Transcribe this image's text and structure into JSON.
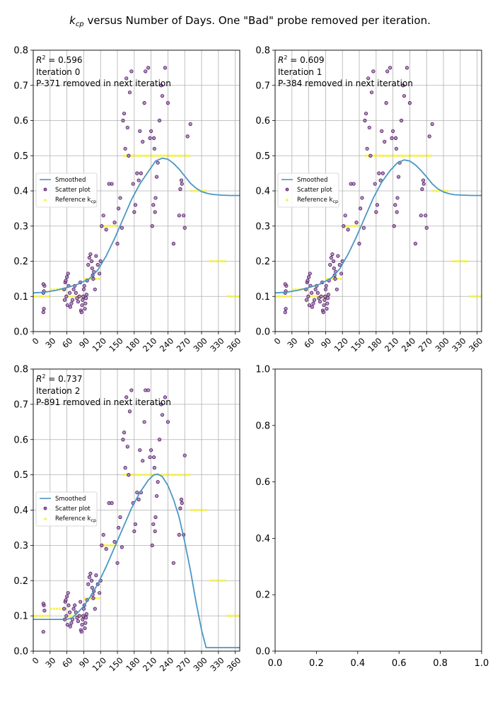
{
  "figure": {
    "title_html": "k_cp versus Number of Days.  One \"Bad\" probe removed per iteration.",
    "title_parts": [
      "k",
      "cp",
      " versus Number of Days.  One \"Bad\" probe removed per iteration."
    ]
  },
  "legend_labels": {
    "smoothed": "Smoothed",
    "scatter": "Scatter plot",
    "reference": "Reference k",
    "reference_sub": "cp"
  },
  "colors": {
    "smoothed": "#4b97c4",
    "scatter_face": "#9b72ae",
    "scatter_edge": "#4b0f5e",
    "reference": "#f7f43a",
    "grid": "#b0b0b0"
  },
  "chart_data": [
    {
      "type": "scatter",
      "panel": "iteration-0",
      "grid": true,
      "xlim": [
        0,
        368
      ],
      "ylim": [
        0,
        0.8
      ],
      "xticks": [
        0,
        30,
        60,
        90,
        120,
        150,
        180,
        210,
        240,
        270,
        300,
        330,
        360
      ],
      "yticks": [
        0.0,
        0.1,
        0.2,
        0.3,
        0.4,
        0.5,
        0.6,
        0.7,
        0.8
      ],
      "annotation": {
        "r2_prefix": "R",
        "r2_sup": "2",
        "r2_value": " = 0.596",
        "iteration": "Iteration 0",
        "removed": "P-371 removed in next iteration"
      },
      "legend_position": "center-left",
      "smoothed": {
        "x": [
          0,
          20,
          40,
          60,
          80,
          100,
          115,
          130,
          145,
          160,
          175,
          190,
          205,
          218,
          230,
          240,
          250,
          260,
          270,
          280,
          290,
          300,
          310,
          320,
          335,
          350,
          368
        ],
        "y": [
          0.11,
          0.112,
          0.117,
          0.125,
          0.135,
          0.15,
          0.175,
          0.215,
          0.265,
          0.32,
          0.375,
          0.42,
          0.455,
          0.485,
          0.493,
          0.49,
          0.478,
          0.462,
          0.442,
          0.422,
          0.408,
          0.398,
          0.393,
          0.39,
          0.388,
          0.387,
          0.387
        ]
      },
      "reference": [
        {
          "x0": 0,
          "x1": 30,
          "y": 0.1
        },
        {
          "x0": 30,
          "x1": 60,
          "y": 0.12
        },
        {
          "x0": 60,
          "x1": 90,
          "y": 0.1
        },
        {
          "x0": 90,
          "x1": 120,
          "y": 0.15
        },
        {
          "x0": 120,
          "x1": 150,
          "y": 0.3
        },
        {
          "x0": 160,
          "x1": 280,
          "y": 0.5
        },
        {
          "x0": 280,
          "x1": 310,
          "y": 0.4
        },
        {
          "x0": 315,
          "x1": 345,
          "y": 0.2
        },
        {
          "x0": 345,
          "x1": 368,
          "y": 0.1
        }
      ],
      "scatter": {
        "x": [
          18,
          19,
          18,
          20,
          18,
          19,
          55,
          57,
          58,
          60,
          62,
          63,
          65,
          56,
          59,
          61,
          66,
          68,
          70,
          72,
          74,
          76,
          78,
          80,
          82,
          84,
          85,
          86,
          87,
          88,
          89,
          90,
          91,
          92,
          93,
          94,
          95,
          96,
          98,
          100,
          102,
          104,
          105,
          106,
          107,
          108,
          110,
          112,
          115,
          118,
          120,
          122,
          125,
          130,
          135,
          140,
          145,
          150,
          152,
          155,
          158,
          160,
          162,
          164,
          166,
          168,
          170,
          172,
          175,
          178,
          180,
          182,
          185,
          188,
          190,
          192,
          195,
          198,
          200,
          205,
          208,
          210,
          212,
          214,
          215,
          216,
          217,
          218,
          220,
          222,
          225,
          228,
          230,
          235,
          240,
          250,
          260,
          262,
          264,
          265,
          268,
          270,
          275,
          280
        ],
        "y": [
          0.055,
          0.065,
          0.11,
          0.13,
          0.135,
          0.115,
          0.12,
          0.14,
          0.145,
          0.155,
          0.165,
          0.13,
          0.11,
          0.09,
          0.1,
          0.075,
          0.07,
          0.08,
          0.09,
          0.12,
          0.13,
          0.11,
          0.095,
          0.085,
          0.1,
          0.14,
          0.06,
          0.055,
          0.075,
          0.09,
          0.1,
          0.12,
          0.13,
          0.065,
          0.08,
          0.095,
          0.105,
          0.145,
          0.19,
          0.21,
          0.22,
          0.2,
          0.18,
          0.16,
          0.15,
          0.17,
          0.12,
          0.215,
          0.19,
          0.165,
          0.2,
          0.3,
          0.33,
          0.29,
          0.42,
          0.42,
          0.31,
          0.25,
          0.35,
          0.38,
          0.295,
          0.6,
          0.62,
          0.52,
          0.72,
          0.58,
          0.5,
          0.68,
          0.74,
          0.42,
          0.34,
          0.36,
          0.45,
          0.43,
          0.57,
          0.45,
          0.54,
          0.65,
          0.74,
          0.75,
          0.55,
          0.57,
          0.3,
          0.36,
          0.55,
          0.52,
          0.34,
          0.38,
          0.44,
          0.48,
          0.6,
          0.7,
          0.67,
          0.75,
          0.65,
          0.25,
          0.33,
          0.405,
          0.43,
          0.42,
          0.33,
          0.295,
          0.555,
          0.59
        ]
      }
    },
    {
      "type": "scatter",
      "panel": "iteration-1",
      "grid": true,
      "xlim": [
        0,
        368
      ],
      "ylim": [
        0,
        0.8
      ],
      "xticks": [
        0,
        30,
        60,
        90,
        120,
        150,
        180,
        210,
        240,
        270,
        300,
        330,
        360
      ],
      "yticks": [
        0.0,
        0.1,
        0.2,
        0.3,
        0.4,
        0.5,
        0.6,
        0.7,
        0.8
      ],
      "annotation": {
        "r2_prefix": "R",
        "r2_sup": "2",
        "r2_value": " = 0.609",
        "iteration": "Iteration 1",
        "removed": "P-384 removed in next iteration"
      },
      "legend_position": "center-left",
      "smoothed": {
        "x": [
          0,
          20,
          40,
          60,
          80,
          100,
          115,
          130,
          145,
          160,
          175,
          190,
          205,
          218,
          230,
          240,
          250,
          260,
          270,
          280,
          290,
          300,
          310,
          320,
          335,
          350,
          368
        ],
        "y": [
          0.11,
          0.112,
          0.117,
          0.125,
          0.135,
          0.152,
          0.178,
          0.22,
          0.27,
          0.325,
          0.38,
          0.425,
          0.458,
          0.48,
          0.488,
          0.485,
          0.474,
          0.458,
          0.44,
          0.42,
          0.406,
          0.397,
          0.392,
          0.389,
          0.388,
          0.387,
          0.387
        ]
      },
      "reference": [
        {
          "x0": 0,
          "x1": 30,
          "y": 0.1
        },
        {
          "x0": 30,
          "x1": 60,
          "y": 0.12
        },
        {
          "x0": 60,
          "x1": 90,
          "y": 0.1
        },
        {
          "x0": 90,
          "x1": 120,
          "y": 0.15
        },
        {
          "x0": 120,
          "x1": 150,
          "y": 0.3
        },
        {
          "x0": 160,
          "x1": 280,
          "y": 0.5
        },
        {
          "x0": 280,
          "x1": 310,
          "y": 0.4
        },
        {
          "x0": 315,
          "x1": 345,
          "y": 0.2
        },
        {
          "x0": 345,
          "x1": 368,
          "y": 0.1
        }
      ],
      "scatter": {
        "x": [
          18,
          19,
          18,
          20,
          18,
          19,
          55,
          57,
          58,
          60,
          62,
          63,
          65,
          56,
          59,
          61,
          66,
          68,
          70,
          72,
          74,
          76,
          78,
          80,
          82,
          84,
          85,
          86,
          87,
          88,
          89,
          90,
          91,
          92,
          93,
          94,
          95,
          96,
          98,
          100,
          102,
          104,
          105,
          106,
          107,
          108,
          110,
          112,
          115,
          118,
          120,
          122,
          125,
          130,
          135,
          140,
          145,
          150,
          152,
          155,
          158,
          160,
          162,
          164,
          166,
          168,
          170,
          172,
          175,
          178,
          180,
          182,
          185,
          188,
          190,
          192,
          195,
          198,
          200,
          205,
          208,
          210,
          212,
          214,
          215,
          216,
          217,
          218,
          220,
          222,
          225,
          228,
          230,
          235,
          240,
          250,
          260,
          262,
          264,
          265,
          268,
          270,
          275,
          280
        ],
        "y": [
          0.055,
          0.065,
          0.11,
          0.13,
          0.135,
          0.115,
          0.12,
          0.14,
          0.145,
          0.155,
          0.165,
          0.13,
          0.11,
          0.09,
          0.1,
          0.075,
          0.07,
          0.08,
          0.09,
          0.12,
          0.13,
          0.11,
          0.095,
          0.085,
          0.1,
          0.14,
          0.06,
          0.055,
          0.075,
          0.09,
          0.1,
          0.12,
          0.13,
          0.065,
          0.08,
          0.095,
          0.105,
          0.145,
          0.19,
          0.21,
          0.22,
          0.2,
          0.18,
          0.16,
          0.15,
          0.17,
          0.12,
          0.215,
          0.19,
          0.165,
          0.2,
          0.3,
          0.33,
          0.29,
          0.42,
          0.42,
          0.31,
          0.25,
          0.35,
          0.38,
          0.295,
          0.6,
          0.62,
          0.52,
          0.72,
          0.58,
          0.5,
          0.68,
          0.74,
          0.42,
          0.34,
          0.36,
          0.45,
          0.43,
          0.57,
          0.45,
          0.54,
          0.65,
          0.74,
          0.75,
          0.55,
          0.57,
          0.3,
          0.36,
          0.55,
          0.52,
          0.34,
          0.38,
          0.44,
          0.48,
          0.6,
          0.7,
          0.67,
          0.75,
          0.65,
          0.25,
          0.33,
          0.405,
          0.43,
          0.42,
          0.33,
          0.295,
          0.555,
          0.59
        ]
      }
    },
    {
      "type": "scatter",
      "panel": "iteration-2",
      "grid": true,
      "xlim": [
        0,
        368
      ],
      "ylim": [
        0,
        0.8
      ],
      "xticks": [
        0,
        30,
        60,
        90,
        120,
        150,
        180,
        210,
        240,
        270,
        300,
        330,
        360
      ],
      "yticks": [
        0.0,
        0.1,
        0.2,
        0.3,
        0.4,
        0.5,
        0.6,
        0.7,
        0.8
      ],
      "annotation": {
        "r2_prefix": "R",
        "r2_sup": "2",
        "r2_value": " = 0.737",
        "iteration": "Iteration 2",
        "removed": "P-891 removed in next iteration"
      },
      "legend_position": "center-left",
      "smoothed": {
        "x": [
          0,
          20,
          40,
          60,
          70,
          80,
          90,
          100,
          115,
          130,
          145,
          160,
          175,
          190,
          205,
          215,
          222,
          230,
          240,
          250,
          260,
          270,
          280,
          290,
          300,
          308,
          330,
          368
        ],
        "y": [
          0.09,
          0.09,
          0.09,
          0.09,
          0.095,
          0.11,
          0.128,
          0.15,
          0.19,
          0.24,
          0.295,
          0.35,
          0.405,
          0.45,
          0.485,
          0.5,
          0.502,
          0.495,
          0.47,
          0.43,
          0.38,
          0.31,
          0.23,
          0.14,
          0.06,
          0.01,
          0.01,
          0.01
        ]
      },
      "reference": [
        {
          "x0": 0,
          "x1": 30,
          "y": 0.1
        },
        {
          "x0": 30,
          "x1": 60,
          "y": 0.12
        },
        {
          "x0": 60,
          "x1": 90,
          "y": 0.1
        },
        {
          "x0": 90,
          "x1": 120,
          "y": 0.15
        },
        {
          "x0": 120,
          "x1": 150,
          "y": 0.3
        },
        {
          "x0": 160,
          "x1": 280,
          "y": 0.5
        },
        {
          "x0": 280,
          "x1": 310,
          "y": 0.4
        },
        {
          "x0": 315,
          "x1": 345,
          "y": 0.2
        },
        {
          "x0": 345,
          "x1": 368,
          "y": 0.1
        }
      ],
      "scatter": {
        "x": [
          18,
          19,
          18,
          20,
          55,
          57,
          58,
          60,
          62,
          63,
          65,
          56,
          59,
          61,
          66,
          68,
          70,
          72,
          74,
          76,
          78,
          80,
          82,
          84,
          85,
          86,
          87,
          88,
          89,
          90,
          91,
          92,
          93,
          94,
          95,
          96,
          98,
          100,
          102,
          104,
          105,
          106,
          107,
          108,
          110,
          112,
          115,
          118,
          120,
          122,
          125,
          130,
          135,
          140,
          145,
          150,
          152,
          155,
          158,
          160,
          162,
          164,
          166,
          168,
          170,
          172,
          175,
          178,
          180,
          182,
          185,
          188,
          190,
          192,
          195,
          198,
          200,
          205,
          208,
          210,
          212,
          214,
          215,
          216,
          217,
          218,
          220,
          222,
          225,
          228,
          230,
          235,
          240,
          250,
          260,
          262,
          264,
          265,
          268,
          270
        ],
        "y": [
          0.055,
          0.13,
          0.135,
          0.115,
          0.12,
          0.14,
          0.145,
          0.155,
          0.165,
          0.13,
          0.11,
          0.09,
          0.1,
          0.075,
          0.07,
          0.08,
          0.09,
          0.12,
          0.13,
          0.11,
          0.095,
          0.085,
          0.1,
          0.14,
          0.06,
          0.055,
          0.075,
          0.09,
          0.1,
          0.12,
          0.13,
          0.065,
          0.08,
          0.095,
          0.105,
          0.145,
          0.19,
          0.21,
          0.22,
          0.2,
          0.18,
          0.16,
          0.15,
          0.17,
          0.12,
          0.215,
          0.19,
          0.165,
          0.2,
          0.3,
          0.33,
          0.29,
          0.42,
          0.42,
          0.31,
          0.25,
          0.35,
          0.38,
          0.295,
          0.6,
          0.62,
          0.52,
          0.72,
          0.58,
          0.5,
          0.68,
          0.74,
          0.42,
          0.34,
          0.36,
          0.45,
          0.43,
          0.57,
          0.45,
          0.54,
          0.65,
          0.74,
          0.74,
          0.55,
          0.57,
          0.3,
          0.36,
          0.55,
          0.52,
          0.34,
          0.38,
          0.44,
          0.48,
          0.6,
          0.7,
          0.67,
          0.72,
          0.65,
          0.25,
          0.33,
          0.405,
          0.43,
          0.42,
          0.33,
          0.555
        ]
      }
    },
    {
      "type": "scatter",
      "panel": "empty",
      "grid": false,
      "xlim": [
        0,
        1
      ],
      "ylim": [
        0,
        1
      ],
      "xticks": [
        0.0,
        0.2,
        0.4,
        0.6,
        0.8,
        1.0
      ],
      "yticks": [
        0.0,
        0.2,
        0.4,
        0.6,
        0.8,
        1.0
      ]
    }
  ]
}
